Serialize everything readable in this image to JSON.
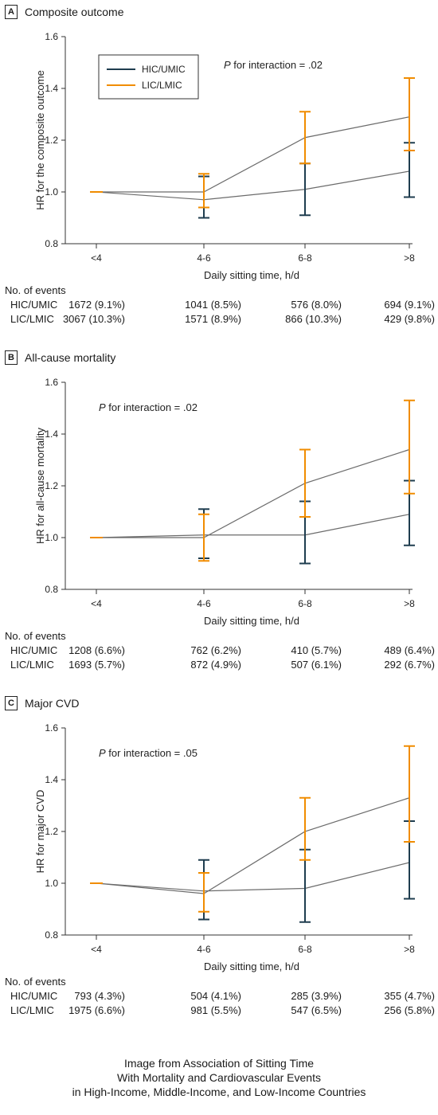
{
  "colors": {
    "hic": "#1f3d4f",
    "lic": "#f08c00",
    "point_line": "#6b6b6b",
    "axis": "#333333"
  },
  "legend": {
    "hic_label": "HIC/UMIC",
    "lic_label": "LIC/LMIC"
  },
  "events_title": "No. of events",
  "caption": [
    "Image from Association of Sitting Time",
    "With Mortality and Cardiovascular Events",
    "in High-Income, Middle-Income, and Low-Income Countries"
  ],
  "chart_data": [
    {
      "panel_letter": "A",
      "title": "Composite outcome",
      "type": "line",
      "xlabel": "Daily sitting time, h/d",
      "ylabel": "HR for the composite outcome",
      "categories": [
        "<4",
        "4-6",
        "6-8",
        ">8"
      ],
      "ylim": [
        0.8,
        1.6
      ],
      "yticks": [
        "0.8",
        "1.0",
        "1.2",
        "1.4",
        "1.6"
      ],
      "legend_shown": true,
      "p_interaction": {
        "italic": "P",
        "rest": " for interaction = .02"
      },
      "series": [
        {
          "name": "HIC/UMIC",
          "values": [
            1.0,
            0.97,
            1.01,
            1.08
          ],
          "lower": [
            1.0,
            0.9,
            0.91,
            0.98
          ],
          "upper": [
            1.0,
            1.06,
            1.11,
            1.19
          ]
        },
        {
          "name": "LIC/LMIC",
          "values": [
            1.0,
            1.0,
            1.21,
            1.29
          ],
          "lower": [
            1.0,
            0.94,
            1.11,
            1.16
          ],
          "upper": [
            1.0,
            1.07,
            1.31,
            1.44
          ]
        }
      ],
      "events": [
        {
          "label": "HIC/UMIC",
          "values": [
            "1672 (9.1%)",
            "1041 (8.5%)",
            "576 (8.0%)",
            "694 (9.1%)"
          ]
        },
        {
          "label": "LIC/LMIC",
          "values": [
            "3067 (10.3%)",
            "1571 (8.9%)",
            "866 (10.3%)",
            "429 (9.8%)"
          ]
        }
      ]
    },
    {
      "panel_letter": "B",
      "title": "All-cause mortality",
      "type": "line",
      "xlabel": "Daily sitting time, h/d",
      "ylabel": "HR for all-cause mortality",
      "categories": [
        "<4",
        "4-6",
        "6-8",
        ">8"
      ],
      "ylim": [
        0.8,
        1.6
      ],
      "yticks": [
        "0.8",
        "1.0",
        "1.2",
        "1.4",
        "1.6"
      ],
      "legend_shown": false,
      "p_interaction": {
        "italic": "P",
        "rest": " for interaction = .02"
      },
      "series": [
        {
          "name": "HIC/UMIC",
          "values": [
            1.0,
            1.01,
            1.01,
            1.09
          ],
          "lower": [
            1.0,
            0.92,
            0.9,
            0.97
          ],
          "upper": [
            1.0,
            1.11,
            1.14,
            1.22
          ]
        },
        {
          "name": "LIC/LMIC",
          "values": [
            1.0,
            1.0,
            1.21,
            1.34
          ],
          "lower": [
            1.0,
            0.91,
            1.08,
            1.17
          ],
          "upper": [
            1.0,
            1.09,
            1.34,
            1.53
          ]
        }
      ],
      "events": [
        {
          "label": "HIC/UMIC",
          "values": [
            "1208 (6.6%)",
            "762 (6.2%)",
            "410 (5.7%)",
            "489 (6.4%)"
          ]
        },
        {
          "label": "LIC/LMIC",
          "values": [
            "1693 (5.7%)",
            "872 (4.9%)",
            "507 (6.1%)",
            "292 (6.7%)"
          ]
        }
      ]
    },
    {
      "panel_letter": "C",
      "title": "Major CVD",
      "type": "line",
      "xlabel": "Daily sitting time, h/d",
      "ylabel": "HR for major CVD",
      "categories": [
        "<4",
        "4-6",
        "6-8",
        ">8"
      ],
      "ylim": [
        0.8,
        1.6
      ],
      "yticks": [
        "0.8",
        "1.0",
        "1.2",
        "1.4",
        "1.6"
      ],
      "legend_shown": false,
      "p_interaction": {
        "italic": "P",
        "rest": " for interaction = .05"
      },
      "series": [
        {
          "name": "HIC/UMIC",
          "values": [
            1.0,
            0.97,
            0.98,
            1.08
          ],
          "lower": [
            1.0,
            0.86,
            0.85,
            0.94
          ],
          "upper": [
            1.0,
            1.09,
            1.13,
            1.24
          ]
        },
        {
          "name": "LIC/LMIC",
          "values": [
            1.0,
            0.96,
            1.2,
            1.33
          ],
          "lower": [
            1.0,
            0.89,
            1.09,
            1.16
          ],
          "upper": [
            1.0,
            1.04,
            1.33,
            1.53
          ]
        }
      ],
      "events": [
        {
          "label": "HIC/UMIC",
          "values": [
            "793 (4.3%)",
            "504 (4.1%)",
            "285 (3.9%)",
            "355 (4.7%)"
          ]
        },
        {
          "label": "LIC/LMIC",
          "values": [
            "1975 (6.6%)",
            "981 (5.5%)",
            "547 (6.5%)",
            "256 (5.8%)"
          ]
        }
      ]
    }
  ]
}
